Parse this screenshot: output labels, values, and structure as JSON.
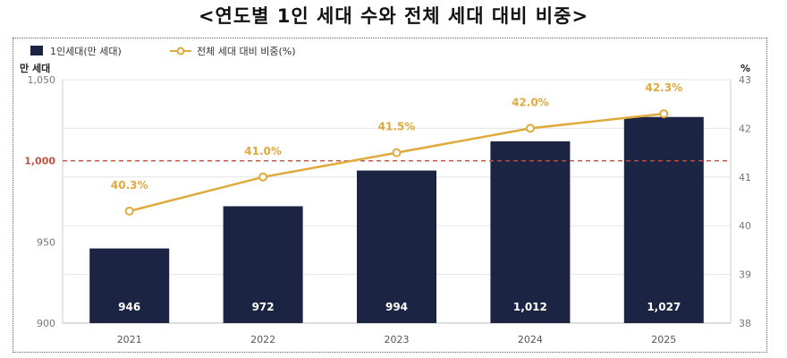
{
  "title": "<연도별 1인 세대 수와 전체 세대 대비 비중>",
  "chart_data": {
    "type": "bar",
    "categories": [
      "2021",
      "2022",
      "2023",
      "2024",
      "2025"
    ],
    "series": [
      {
        "name": "1인세대(만 세대)",
        "type": "bar",
        "axis": "left",
        "values": [
          946,
          972,
          994,
          1012,
          1027
        ],
        "labels": [
          "946",
          "972",
          "994",
          "1,012",
          "1,027"
        ],
        "color": "#1b2442"
      },
      {
        "name": "전체 세대 대비 비중(%)",
        "type": "line",
        "axis": "right",
        "values": [
          40.3,
          41.0,
          41.5,
          42.0,
          42.3
        ],
        "labels": [
          "40.3%",
          "41.0%",
          "41.5%",
          "42.0%",
          "42.3%"
        ],
        "color": "#e0a93c"
      }
    ],
    "ylabel_left": "만 세대",
    "ylabel_right": "%",
    "ylim_left": [
      900,
      1050
    ],
    "yticks_left": [
      900,
      950,
      1000,
      1050
    ],
    "yticklabels_left": [
      "900",
      "950",
      "1,000",
      "1,050"
    ],
    "ylim_right": [
      38,
      43
    ],
    "yticks_right": [
      38,
      39,
      40,
      41,
      42,
      43
    ],
    "reference_line": {
      "value": 1000,
      "axis": "left",
      "color": "#c0503f",
      "style": "dashed"
    },
    "grid": true,
    "legend": "top-left"
  }
}
